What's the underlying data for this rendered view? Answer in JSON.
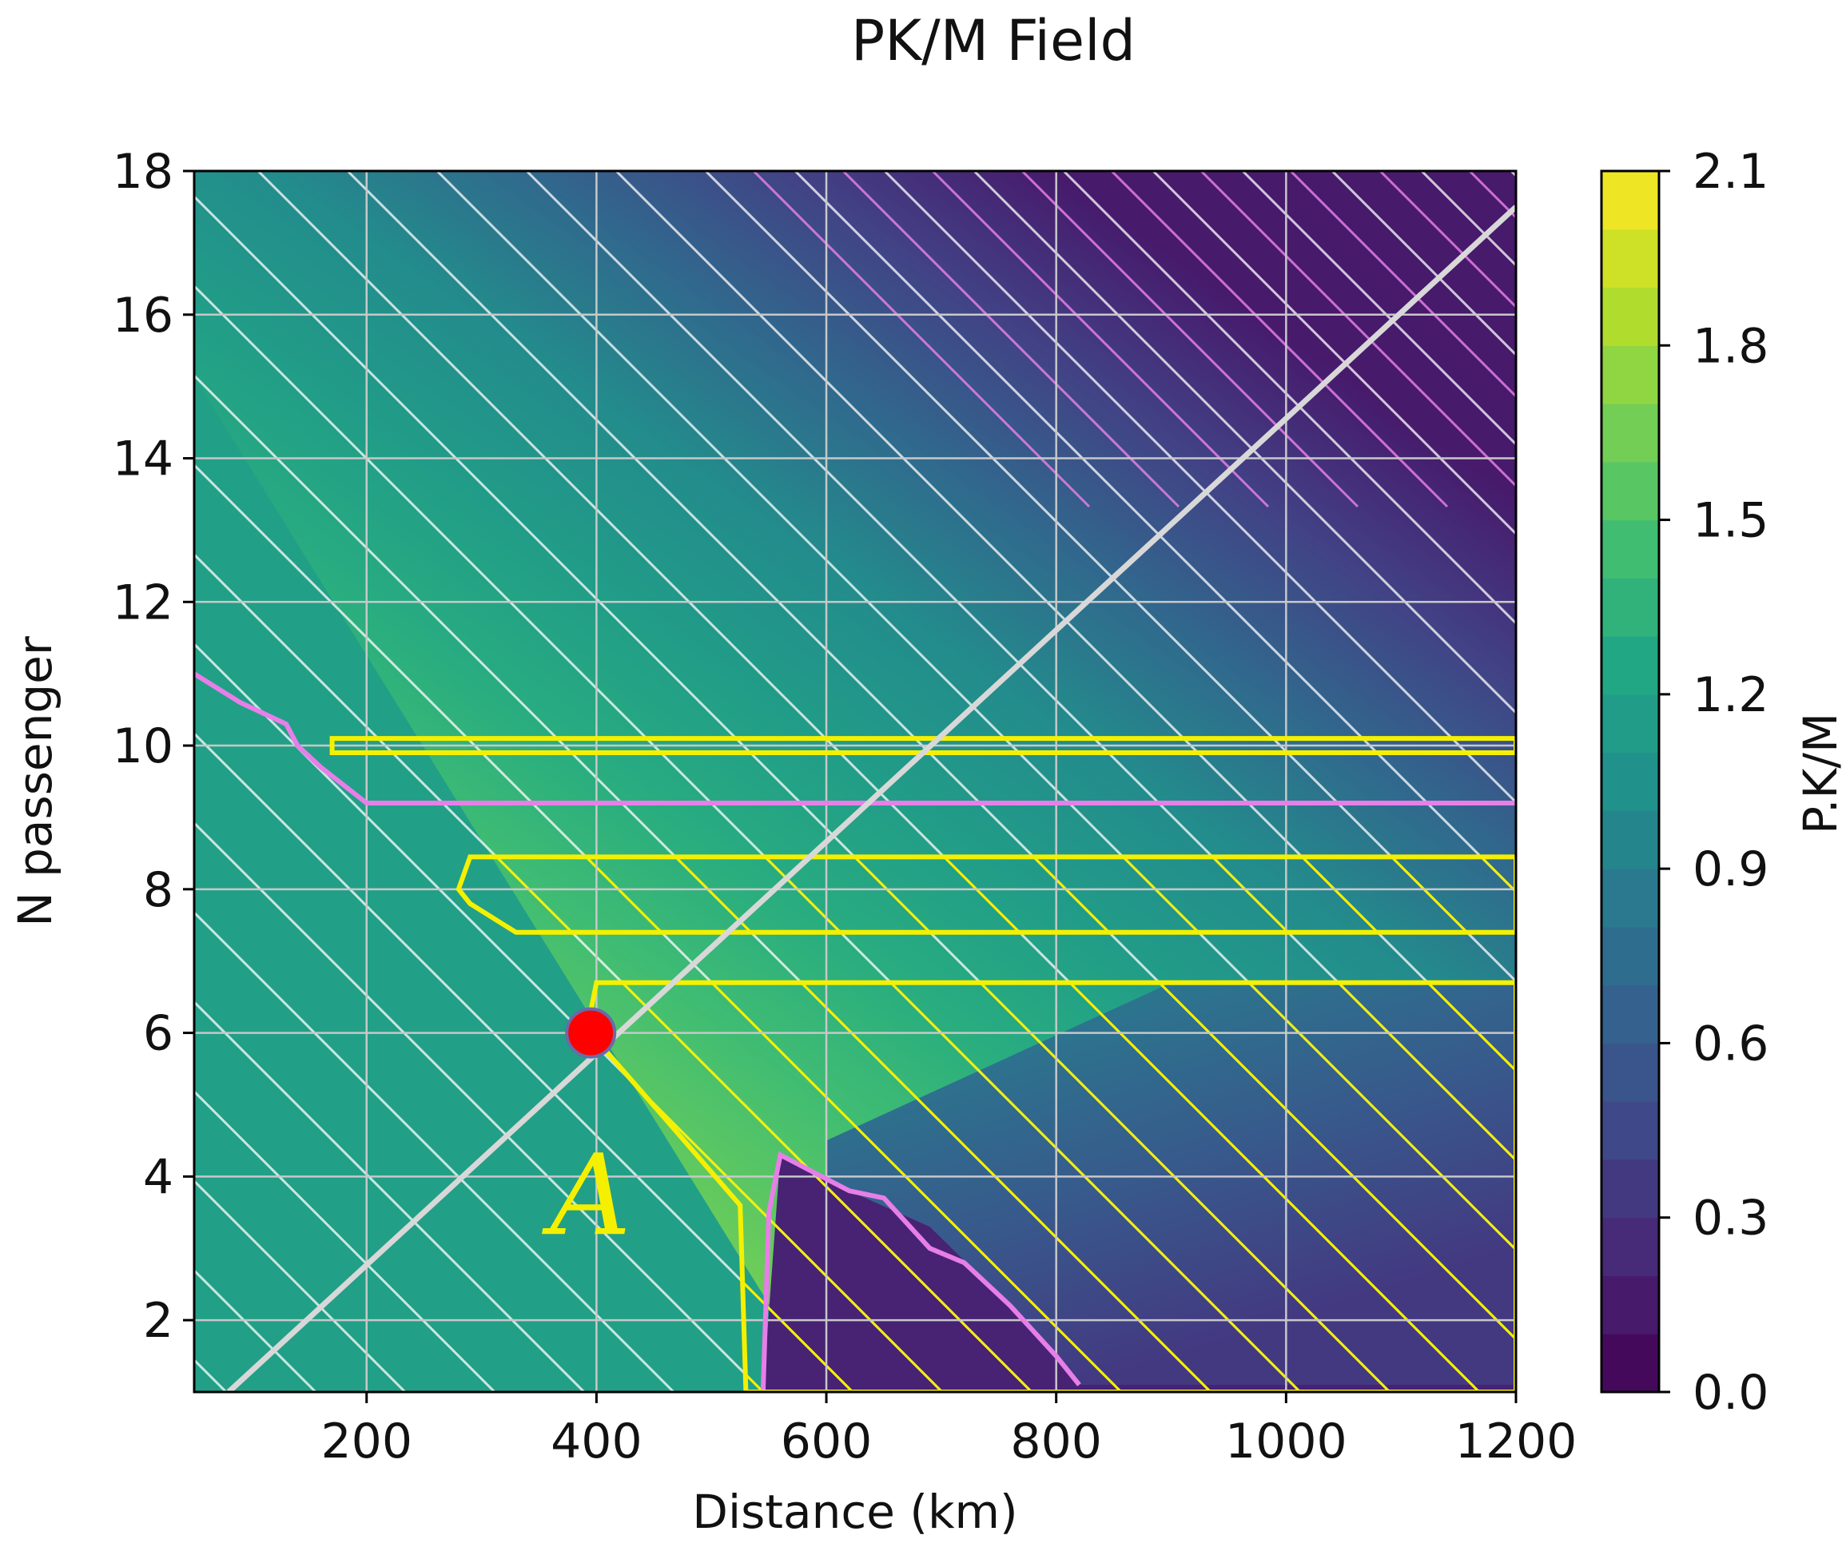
{
  "chart_data": {
    "type": "heatmap",
    "title": "PK/M Field",
    "xlabel": "Distance (km)",
    "ylabel": "N passenger",
    "xlim": [
      50,
      1200
    ],
    "ylim": [
      1,
      18
    ],
    "xticks": [
      200,
      400,
      600,
      800,
      1000,
      1200
    ],
    "yticks": [
      2,
      4,
      6,
      8,
      10,
      12,
      14,
      16,
      18
    ],
    "grid": true,
    "colorbar": {
      "label": "P.K/M",
      "colormap": "viridis",
      "range": [
        0.0,
        2.1
      ],
      "ticks": [
        "0.0",
        "0.3",
        "0.6",
        "0.9",
        "1.2",
        "1.5",
        "1.8",
        "2.1"
      ]
    },
    "field_levels": [
      0.15,
      0.4,
      0.7,
      1.0,
      1.15,
      1.3,
      1.45,
      1.6,
      1.75,
      1.9,
      2.0
    ],
    "regions": {
      "low_value_pocket": [
        [
          560,
          4.3
        ],
        [
          620,
          3.8
        ],
        [
          690,
          3.3
        ],
        [
          760,
          2.2
        ],
        [
          820,
          1.1
        ],
        [
          1200,
          1.1
        ],
        [
          1200,
          1.0
        ],
        [
          545,
          1.0
        ]
      ],
      "magenta_contour_upper": [
        [
          50,
          11.0
        ],
        [
          90,
          10.6
        ],
        [
          130,
          10.3
        ],
        [
          140,
          10.0
        ],
        [
          160,
          9.7
        ],
        [
          200,
          9.2
        ],
        [
          1200,
          9.2
        ]
      ],
      "magenta_contour_lower": [
        [
          545,
          1.0
        ],
        [
          550,
          3.5
        ],
        [
          560,
          4.3
        ],
        [
          620,
          3.8
        ],
        [
          650,
          3.7
        ],
        [
          690,
          3.0
        ],
        [
          720,
          2.8
        ],
        [
          760,
          2.2
        ],
        [
          800,
          1.5
        ],
        [
          820,
          1.1
        ]
      ],
      "yellow_band_upper": [
        [
          170,
          10.1
        ],
        [
          1200,
          10.1
        ],
        [
          1200,
          9.9
        ],
        [
          170,
          9.9
        ]
      ],
      "yellow_band_middle": [
        [
          290,
          8.45
        ],
        [
          1200,
          8.45
        ],
        [
          1200,
          7.4
        ],
        [
          330,
          7.4
        ],
        [
          290,
          7.8
        ],
        [
          280,
          8.0
        ]
      ],
      "yellow_region_lower": [
        [
          400,
          6.7
        ],
        [
          1200,
          6.7
        ],
        [
          1200,
          1.0
        ],
        [
          530,
          1.0
        ],
        [
          525,
          3.6
        ],
        [
          460,
          4.8
        ],
        [
          400,
          5.9
        ],
        [
          395,
          6.3
        ]
      ],
      "gray_line": [
        [
          80,
          1.0
        ],
        [
          1200,
          17.5
        ]
      ]
    },
    "marker": {
      "x": 395,
      "y": 6.0,
      "color": "#ff0000"
    },
    "annotation": {
      "text": "A",
      "x": 395,
      "y": 3.2,
      "color": "#f5f000"
    }
  }
}
